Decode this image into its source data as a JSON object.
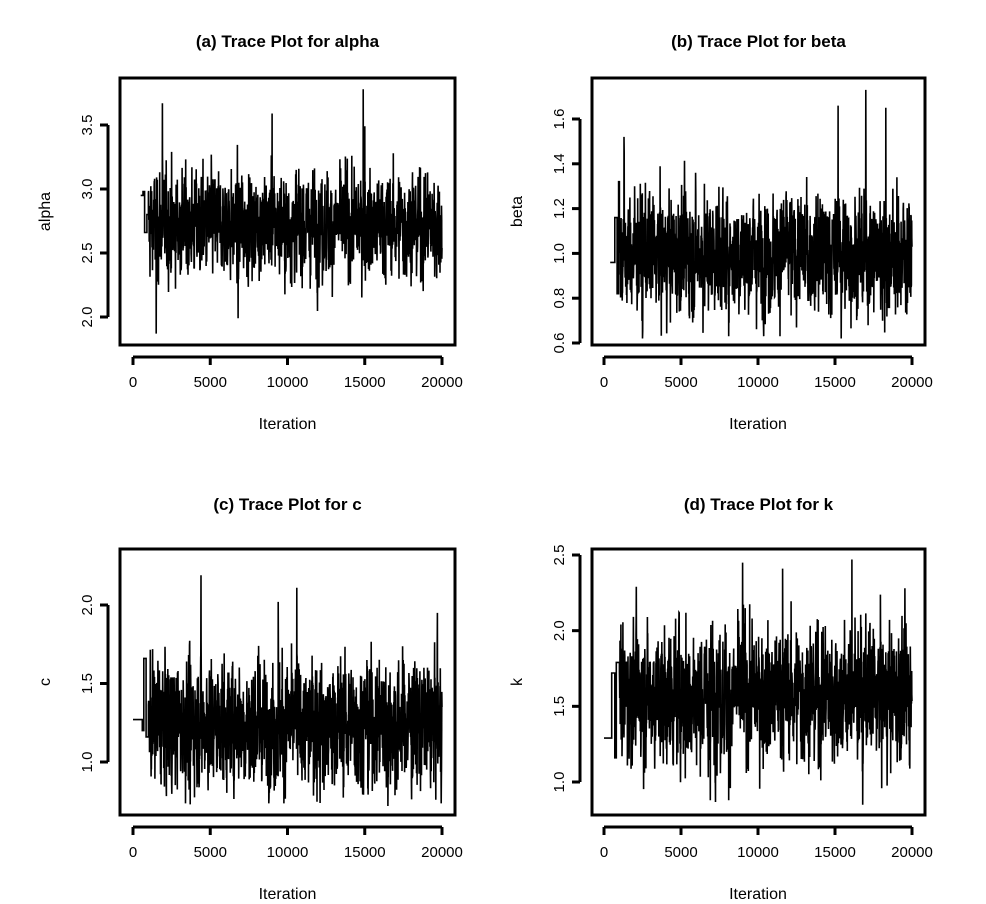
{
  "chart_data": [
    {
      "type": "line",
      "title": "(a) Trace Plot for alpha",
      "xlabel": "Iteration",
      "ylabel": "alpha",
      "xlim": [
        0,
        20000
      ],
      "ylim": [
        1.85,
        3.8
      ],
      "xticks": [
        0,
        5000,
        10000,
        15000,
        20000
      ],
      "yticks": [
        2.0,
        2.5,
        3.0,
        3.5
      ],
      "start_segments": [
        [
          500,
          2.95
        ],
        [
          650,
          2.98
        ],
        [
          750,
          2.66
        ],
        [
          900,
          2.8
        ]
      ],
      "chain_start": 1000,
      "mean": 2.72,
      "sd": 0.2,
      "min": 1.87,
      "max": 3.78,
      "spikes": [
        [
          1500,
          1.87
        ],
        [
          1900,
          3.67
        ],
        [
          9000,
          3.59
        ],
        [
          14900,
          3.78
        ],
        [
          15000,
          3.49
        ],
        [
          6800,
          1.99
        ]
      ],
      "color": "#000000"
    },
    {
      "type": "line",
      "title": "(b) Trace Plot for beta",
      "xlabel": "Iteration",
      "ylabel": "beta",
      "xlim": [
        0,
        20000
      ],
      "ylim": [
        0.6,
        1.75
      ],
      "xticks": [
        0,
        5000,
        10000,
        15000,
        20000
      ],
      "yticks": [
        0.6,
        0.8,
        1.0,
        1.2,
        1.4,
        1.6
      ],
      "start_segments": [
        [
          400,
          0.96
        ],
        [
          700,
          1.16
        ],
        [
          850,
          0.82
        ],
        [
          950,
          1.32
        ]
      ],
      "chain_start": 1000,
      "mean": 1.0,
      "sd": 0.13,
      "min": 0.62,
      "max": 1.73,
      "spikes": [
        [
          1300,
          1.52
        ],
        [
          2500,
          0.62
        ],
        [
          15200,
          1.66
        ],
        [
          15400,
          0.62
        ],
        [
          17000,
          1.73
        ],
        [
          18300,
          1.65
        ]
      ],
      "color": "#000000"
    },
    {
      "type": "line",
      "title": "(c) Trace Plot for c",
      "xlabel": "Iteration",
      "ylabel": "c",
      "xlim": [
        0,
        20000
      ],
      "ylim": [
        0.7,
        2.22
      ],
      "xticks": [
        0,
        5000,
        10000,
        15000,
        20000
      ],
      "yticks": [
        1.0,
        1.5,
        2.0
      ],
      "start_segments": [
        [
          0,
          1.27
        ],
        [
          600,
          1.2
        ],
        [
          700,
          1.66
        ],
        [
          850,
          1.16
        ]
      ],
      "chain_start": 1000,
      "mean": 1.25,
      "sd": 0.2,
      "min": 0.72,
      "max": 2.19,
      "spikes": [
        [
          4400,
          2.19
        ],
        [
          10600,
          2.11
        ],
        [
          9400,
          2.02
        ],
        [
          3700,
          0.73
        ],
        [
          16500,
          0.72
        ],
        [
          19700,
          1.95
        ]
      ],
      "color": "#000000"
    },
    {
      "type": "line",
      "title": "(d) Trace Plot for k",
      "xlabel": "Iteration",
      "ylabel": "k",
      "xlim": [
        0,
        20000
      ],
      "ylim": [
        0.82,
        2.52
      ],
      "xticks": [
        0,
        5000,
        10000,
        15000,
        20000
      ],
      "yticks": [
        1.0,
        1.5,
        2.0,
        2.5
      ],
      "start_segments": [
        [
          0,
          1.29
        ],
        [
          500,
          1.72
        ],
        [
          700,
          1.16
        ],
        [
          800,
          1.79
        ]
      ],
      "chain_start": 1000,
      "mean": 1.58,
      "sd": 0.22,
      "min": 0.85,
      "max": 2.47,
      "spikes": [
        [
          9000,
          2.45
        ],
        [
          11600,
          2.41
        ],
        [
          16100,
          2.47
        ],
        [
          16800,
          0.85
        ],
        [
          8100,
          0.88
        ],
        [
          6900,
          0.88
        ]
      ],
      "color": "#000000"
    }
  ]
}
